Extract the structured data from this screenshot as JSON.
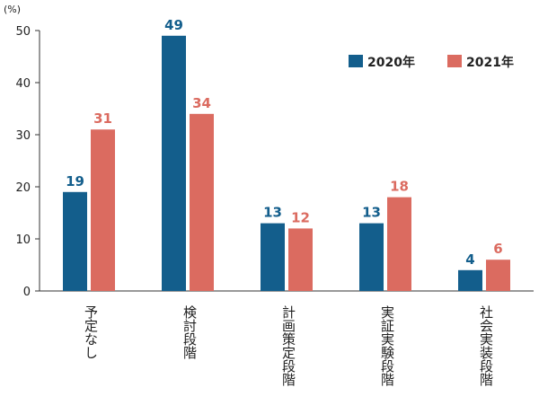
{
  "chart_data": {
    "type": "bar",
    "unit_label": "(%)",
    "categories": [
      "予定なし",
      "検討段階",
      "計画策定段階",
      "実証実験段階",
      "社会実装段階"
    ],
    "series": [
      {
        "name": "2020年",
        "color": "#135e8c",
        "values": [
          19,
          49,
          13,
          13,
          4
        ]
      },
      {
        "name": "2021年",
        "color": "#db6b60",
        "values": [
          31,
          34,
          12,
          18,
          6
        ]
      }
    ],
    "ylim": [
      0,
      50
    ],
    "yticks": [
      0,
      10,
      20,
      30,
      40,
      50
    ],
    "grid": false,
    "legend": "top-right",
    "title": "",
    "xlabel": "",
    "ylabel": ""
  }
}
